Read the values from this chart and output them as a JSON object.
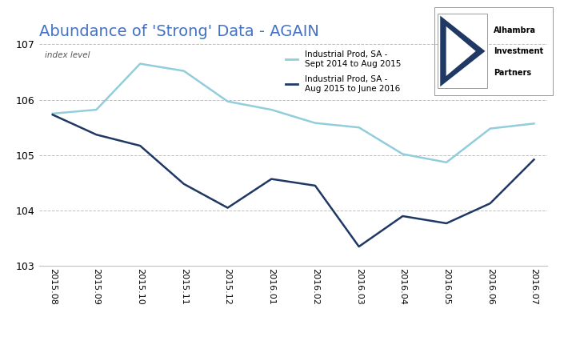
{
  "title": "Abundance of 'Strong' Data - AGAIN",
  "ylabel": "index level",
  "x_labels": [
    "2015.08",
    "2015.09",
    "2015.10",
    "2015.11",
    "2015.12",
    "2016.01",
    "2016.02",
    "2016.03",
    "2016.04",
    "2016.05",
    "2016.06",
    "2016.07"
  ],
  "series1_label": "Industrial Prod, SA -\nSept 2014 to Aug 2015",
  "series2_label": "Industrial Prod, SA -\nAug 2015 to June 2016",
  "series1_color": "#92CDDC",
  "series2_color": "#1F3864",
  "series1_values": [
    105.75,
    105.82,
    106.65,
    106.52,
    105.97,
    105.82,
    105.58,
    105.5,
    105.02,
    104.87,
    105.48,
    105.57
  ],
  "series2_values": [
    105.73,
    105.37,
    105.17,
    104.48,
    104.05,
    104.57,
    104.45,
    103.35,
    103.9,
    103.77,
    104.13,
    104.92
  ],
  "ylim": [
    103,
    107
  ],
  "yticks": [
    103,
    104,
    105,
    106,
    107
  ],
  "background_color": "#FFFFFF",
  "plot_bg_color": "#FFFFFF",
  "grid_color": "#C0C0C0",
  "title_color": "#4472C4",
  "title_fontsize": 14,
  "line_width": 1.8,
  "logo_text": [
    "Alhambra",
    "Investment",
    "Partners"
  ],
  "logo_dark_color": "#1F3864",
  "logo_border_color": "#999999"
}
